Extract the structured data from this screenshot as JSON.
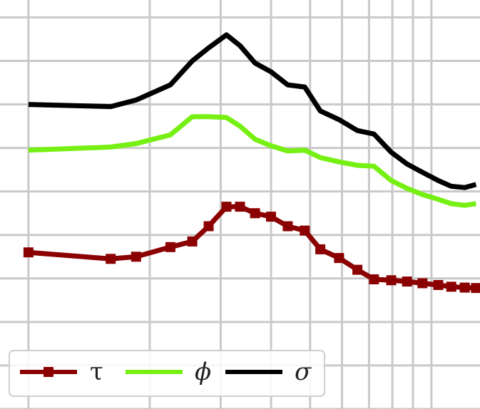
{
  "chart_data": {
    "type": "line",
    "xscale": "log",
    "grid": true,
    "legend_position": "bottom-left",
    "title": "",
    "xlabel": "",
    "ylabel": "",
    "x": [
      1.0,
      1.6,
      1.85,
      2.25,
      2.55,
      2.8,
      3.1,
      3.35,
      3.65,
      4.0,
      4.4,
      4.85,
      5.3,
      5.9,
      6.55,
      7.2,
      7.95,
      8.7,
      9.5,
      10.4,
      11.2,
      12.1,
      12.9
    ],
    "series": [
      {
        "name": "τ",
        "color": "#8b0000",
        "marker": "square",
        "values": [
          3.6,
          3.45,
          3.5,
          3.72,
          3.85,
          4.2,
          4.65,
          4.65,
          4.5,
          4.42,
          4.2,
          4.1,
          3.67,
          3.47,
          3.2,
          2.98,
          2.96,
          2.93,
          2.89,
          2.85,
          2.81,
          2.79,
          2.78
        ]
      },
      {
        "name": "ϕ",
        "color": "#76f013",
        "marker": "none",
        "values": [
          5.95,
          6.02,
          6.1,
          6.3,
          6.72,
          6.72,
          6.7,
          6.5,
          6.2,
          6.05,
          5.93,
          5.95,
          5.78,
          5.68,
          5.6,
          5.58,
          5.25,
          5.07,
          4.93,
          4.82,
          4.72,
          4.68,
          4.72
        ]
      },
      {
        "name": "σ",
        "color": "#000000",
        "marker": "none",
        "values": [
          7.0,
          6.95,
          7.1,
          7.45,
          8.0,
          8.3,
          8.6,
          8.35,
          7.95,
          7.75,
          7.45,
          7.4,
          6.85,
          6.65,
          6.4,
          6.32,
          5.9,
          5.63,
          5.44,
          5.25,
          5.12,
          5.09,
          5.16
        ]
      }
    ],
    "xlim": [
      0.85,
      13.2
    ],
    "ylim": [
      0.0,
      9.4
    ]
  }
}
